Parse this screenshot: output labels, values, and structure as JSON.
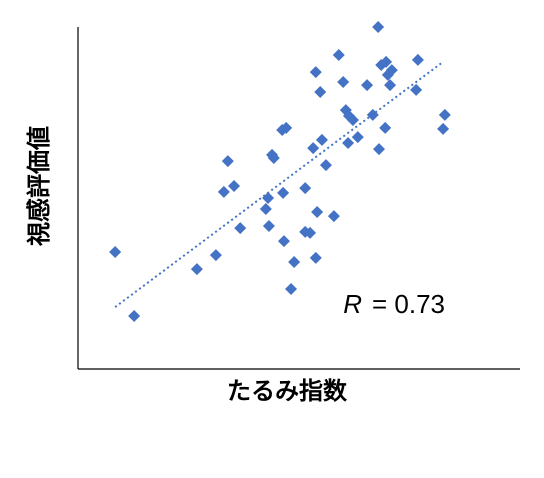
{
  "chart_data": {
    "type": "scatter",
    "xlabel": "たるみ指数",
    "ylabel": "視感評価値",
    "annotation": {
      "symbol": "R",
      "text": "= 0.73"
    },
    "color": "#4472c4",
    "xlim": [
      0,
      100
    ],
    "ylim": [
      0,
      100
    ],
    "x": [
      8.4,
      12.7,
      26.9,
      31.2,
      33.9,
      33.0,
      35.3,
      36.7,
      42.5,
      43.0,
      43.2,
      43.9,
      44.3,
      46.2,
      47.1,
      46.4,
      46.6,
      48.2,
      48.9,
      51.4,
      51.4,
      52.5,
      53.2,
      53.8,
      54.1,
      54.8,
      53.8,
      55.2,
      56.1,
      57.9,
      59.0,
      60.0,
      60.6,
      61.3,
      61.1,
      62.2,
      63.3,
      65.4,
      66.7,
      67.9,
      68.1,
      68.6,
      69.7,
      69.5,
      70.1,
      70.6,
      71.0,
      76.5,
      76.9,
      82.6,
      83.0
    ],
    "values": [
      34.2,
      15.5,
      29.2,
      33.3,
      60.8,
      51.8,
      53.5,
      41.2,
      46.8,
      50.0,
      41.8,
      62.6,
      61.7,
      69.9,
      70.5,
      51.5,
      37.4,
      23.4,
      31.3,
      52.9,
      40.1,
      39.8,
      64.6,
      32.5,
      45.9,
      81.0,
      86.8,
      67.0,
      59.6,
      44.7,
      91.8,
      83.9,
      75.7,
      74.0,
      66.1,
      72.8,
      67.8,
      83.0,
      74.3,
      100,
      64.3,
      88.9,
      89.8,
      70.5,
      86.0,
      83.0,
      87.4,
      81.6,
      90.4,
      70.2,
      74.3
    ],
    "trendline": {
      "x": [
        8.4,
        82.6
      ],
      "y": [
        18.1,
        89.8
      ],
      "color": "#4472c4"
    }
  }
}
